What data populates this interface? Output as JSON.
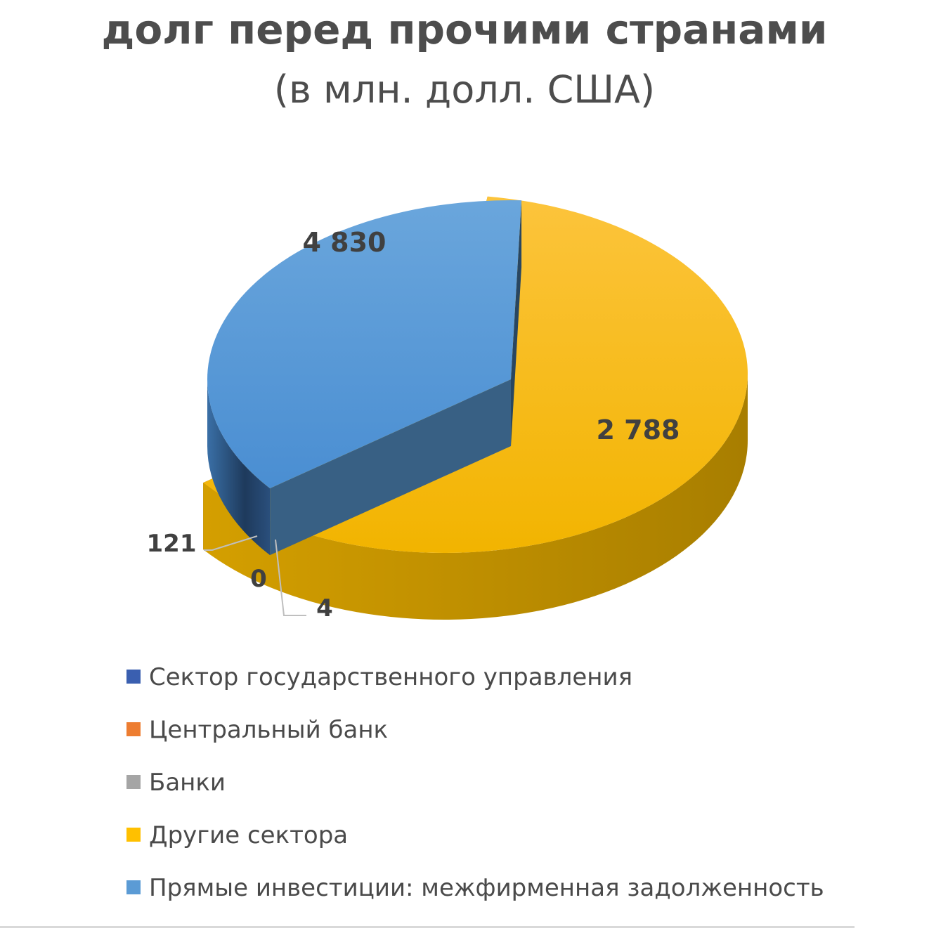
{
  "chart_data": {
    "type": "pie",
    "title": "долг перед прочими странами",
    "subtitle": "(в млн. долл. США)",
    "categories": [
      "Сектор государственного управления",
      "Центральный банк",
      "Банки",
      "Другие сектора",
      "Прямые инвестиции: межфирменная задолженность"
    ],
    "values": [
      4,
      0,
      121,
      4830,
      2788
    ],
    "value_labels": [
      "4",
      "0",
      "121",
      "4 830",
      "2 788"
    ],
    "colors": [
      "#3a5fb0",
      "#ed7d31",
      "#a5a5a5",
      "#ffc000",
      "#5b9bd5"
    ],
    "legend_position": "bottom",
    "style": "3d-exploded"
  }
}
